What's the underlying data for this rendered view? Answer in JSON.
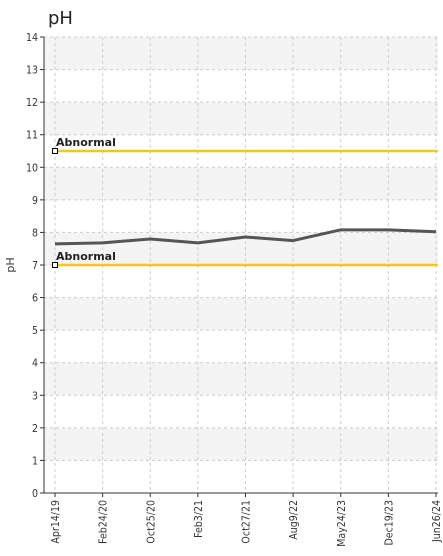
{
  "chart_data": {
    "type": "line",
    "title": "pH",
    "xlabel": "",
    "ylabel": "pH",
    "ylim": [
      0,
      14
    ],
    "yticks": [
      0,
      1,
      2,
      3,
      4,
      5,
      6,
      7,
      8,
      9,
      10,
      11,
      12,
      13,
      14
    ],
    "xticks": [
      "Apr14/19",
      "Feb24/20",
      "Oct25/20",
      "Feb3/21",
      "Oct27/21",
      "Aug9/22",
      "May24/23",
      "Dec19/23",
      "Jun26/24"
    ],
    "grid": true,
    "series": [
      {
        "values": [
          7.65,
          7.68,
          7.8,
          7.68,
          7.86,
          7.75,
          8.08,
          8.08,
          8.02
        ],
        "color": "#555555"
      }
    ],
    "reference_lines": [
      {
        "label": "Abnormal",
        "value": 10.5,
        "color": "#f2c81c"
      },
      {
        "label": "Abnormal",
        "value": 7.0,
        "color": "#f2c81c"
      }
    ]
  }
}
